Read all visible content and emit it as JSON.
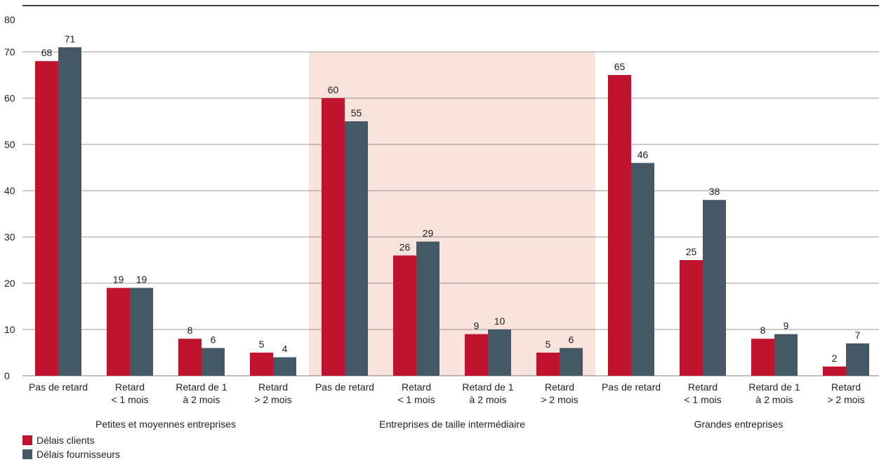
{
  "chart_data": {
    "type": "bar",
    "ylim": [
      0,
      80
    ],
    "yticks": [
      0,
      10,
      20,
      30,
      40,
      50,
      60,
      70,
      80
    ],
    "grid": true,
    "groups": [
      {
        "label": "Petites et moyennes entreprises",
        "highlighted": false,
        "categories": [
          [
            "Pas de retard"
          ],
          [
            "Retard",
            "< 1 mois"
          ],
          [
            "Retard de 1",
            "à 2 mois"
          ],
          [
            "Retard",
            "> 2 mois"
          ]
        ],
        "clients": [
          68,
          19,
          8,
          5
        ],
        "fournisseurs": [
          71,
          19,
          6,
          4
        ]
      },
      {
        "label": "Entreprises de taille intermédiaire",
        "highlighted": true,
        "categories": [
          [
            "Pas de retard"
          ],
          [
            "Retard",
            "< 1 mois"
          ],
          [
            "Retard de 1",
            "à 2 mois"
          ],
          [
            "Retard",
            "> 2 mois"
          ]
        ],
        "clients": [
          60,
          26,
          9,
          5
        ],
        "fournisseurs": [
          55,
          29,
          10,
          6
        ]
      },
      {
        "label": "Grandes entreprises",
        "highlighted": false,
        "categories": [
          [
            "Pas de retard"
          ],
          [
            "Retard",
            "< 1 mois"
          ],
          [
            "Retard de 1",
            "à 2 mois"
          ],
          [
            "Retard",
            "> 2 mois"
          ]
        ],
        "clients": [
          65,
          25,
          8,
          2
        ],
        "fournisseurs": [
          46,
          38,
          9,
          7
        ]
      }
    ],
    "series": [
      {
        "name": "Délais clients",
        "color": "#c0132f"
      },
      {
        "name": "Délais fournisseurs",
        "color": "#455865"
      }
    ],
    "highlight_color": "#f8e4dc",
    "legend_position": "bottom-left"
  }
}
